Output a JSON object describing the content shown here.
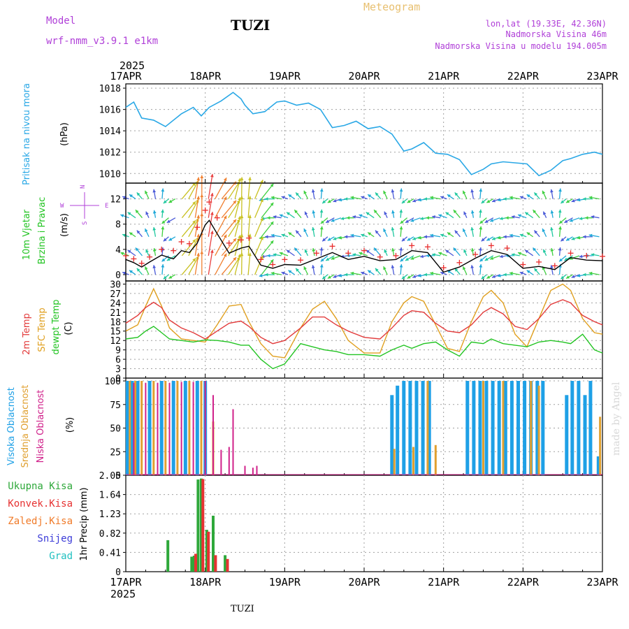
{
  "header": {
    "left_line1": "Model",
    "left_line2": "wrf-nmm_v3.9.1 e1km",
    "title": "TUZI",
    "center_title": "Meteogram",
    "right_line1": "lon,lat (19.33E, 42.36N)",
    "right_line2": "Nadmorska Visina 46m",
    "right_line3": "Nadmorska Visina u modelu 194.005m",
    "year_top": "2025",
    "year_bottom": "2025",
    "footer": "TUZI",
    "credit": "made by Angel",
    "compass": {
      "n": "N",
      "w": "W",
      "e": "E",
      "s": "S"
    }
  },
  "colors": {
    "pressure": "#2aa8e6",
    "wind_speed": "#000000",
    "gust_marker": "#e82c2c",
    "temp_2m": "#e23b3b",
    "temp_sfc": "#e0a020",
    "dewpoint": "#22c422",
    "cloud_high": "#1ea0e6",
    "cloud_mid": "#e0a030",
    "cloud_low": "#d0208a",
    "precip_total": "#2ea83a",
    "precip_conv": "#e63232",
    "precip_frozen": "#f07a28",
    "precip_snow": "#3c3cd8",
    "precip_graupel": "#20c0c0",
    "header_purple": "#b040d8",
    "header_orange": "#e8c070",
    "axis": "#000000",
    "grid": "#a0a0a0"
  },
  "chart_data": [
    {
      "type": "line",
      "panel": "pressure",
      "ylabel_lines": [
        "Pritisak na nivou mora",
        "(hPa)"
      ],
      "yticks": [
        1010,
        1012,
        1014,
        1016,
        1018
      ],
      "ylim": [
        1009.1,
        1018.4
      ],
      "x_ticks": [
        "17APR",
        "18APR",
        "19APR",
        "20APR",
        "21APR",
        "22APR",
        "23APR"
      ],
      "x": [
        0,
        0.1,
        0.2,
        0.35,
        0.5,
        0.7,
        0.85,
        0.95,
        1.05,
        1.2,
        1.35,
        1.45,
        1.5,
        1.6,
        1.75,
        1.9,
        2.0,
        2.15,
        2.3,
        2.45,
        2.6,
        2.75,
        2.9,
        3.05,
        3.2,
        3.35,
        3.5,
        3.6,
        3.75,
        3.9,
        4.05,
        4.2,
        4.35,
        4.5,
        4.6,
        4.75,
        4.9,
        5.05,
        5.2,
        5.35,
        5.5,
        5.6,
        5.75,
        5.9,
        6.0
      ],
      "series": [
        {
          "name": "Pritisak na nivou mora",
          "values": [
            1016.2,
            1016.7,
            1015.2,
            1015.0,
            1014.4,
            1015.6,
            1016.2,
            1015.4,
            1016.2,
            1016.8,
            1017.6,
            1017.0,
            1016.4,
            1015.6,
            1015.8,
            1016.7,
            1016.8,
            1016.4,
            1016.6,
            1016.0,
            1014.3,
            1014.5,
            1014.9,
            1014.2,
            1014.4,
            1013.7,
            1012.1,
            1012.3,
            1012.9,
            1011.9,
            1011.8,
            1011.3,
            1009.9,
            1010.4,
            1010.9,
            1011.1,
            1011.0,
            1010.9,
            1009.8,
            1010.3,
            1011.2,
            1011.4,
            1011.8,
            1012.0,
            1011.8
          ]
        }
      ]
    },
    {
      "type": "line",
      "panel": "wind",
      "ylabel_lines": [
        "10m Vjetar",
        "Brzina i Pravac",
        "(m/s)"
      ],
      "yticks": [
        0,
        4,
        8,
        12
      ],
      "ylim": [
        -1,
        14.5
      ],
      "x": [
        0,
        0.1,
        0.2,
        0.3,
        0.45,
        0.6,
        0.7,
        0.8,
        0.9,
        1.0,
        1.05,
        1.15,
        1.3,
        1.45,
        1.55,
        1.7,
        1.85,
        2.0,
        2.2,
        2.4,
        2.6,
        2.8,
        3.0,
        3.2,
        3.4,
        3.6,
        3.8,
        4.0,
        4.2,
        4.4,
        4.6,
        4.8,
        5.0,
        5.2,
        5.4,
        5.6,
        5.8,
        6.0
      ],
      "series": [
        {
          "name": "speed",
          "values": [
            2.4,
            1.9,
            1.2,
            2.0,
            3.1,
            2.5,
            3.8,
            3.5,
            5.0,
            7.9,
            8.6,
            6.5,
            3.4,
            4.2,
            4.5,
            1.5,
            1.0,
            1.6,
            1.5,
            2.5,
            3.5,
            2.4,
            2.9,
            2.2,
            2.4,
            3.8,
            3.5,
            0.4,
            1.2,
            2.6,
            3.8,
            3.2,
            1.0,
            1.3,
            0.8,
            2.7,
            2.3,
            2.2
          ]
        },
        {
          "name": "gust",
          "values": [
            3.0,
            2.5,
            1.8,
            2.8,
            4.0,
            3.8,
            5.2,
            4.9,
            7.5,
            10.2,
            11.5,
            9.0,
            5.0,
            5.5,
            5.8,
            2.4,
            1.6,
            2.4,
            2.3,
            3.4,
            4.5,
            3.4,
            3.8,
            2.8,
            3.0,
            4.6,
            4.4,
            1.1,
            1.9,
            3.2,
            4.6,
            4.2,
            1.6,
            2.0,
            1.4,
            3.4,
            3.0,
            2.9
          ]
        }
      ],
      "arrow_rows": [
        12,
        9,
        6,
        3,
        0
      ]
    },
    {
      "type": "line",
      "panel": "temperature",
      "ylabel_lines": [
        "2m Temp",
        "SFC Temp",
        "dewpt Temp",
        "(C)"
      ],
      "yticks": [
        0,
        3,
        6,
        9,
        12,
        15,
        18,
        21,
        24,
        27,
        30
      ],
      "ylim": [
        0,
        31
      ],
      "x": [
        0,
        0.15,
        0.25,
        0.35,
        0.45,
        0.55,
        0.7,
        0.85,
        1.0,
        1.15,
        1.3,
        1.45,
        1.55,
        1.7,
        1.85,
        2.0,
        2.2,
        2.35,
        2.5,
        2.65,
        2.8,
        3.0,
        3.2,
        3.35,
        3.5,
        3.6,
        3.75,
        3.9,
        4.05,
        4.2,
        4.35,
        4.5,
        4.6,
        4.75,
        4.9,
        5.05,
        5.2,
        5.35,
        5.5,
        5.6,
        5.75,
        5.9,
        6.0
      ],
      "series": [
        {
          "name": "2m Temp",
          "values": [
            17.5,
            20,
            22.5,
            24.2,
            22.5,
            18.5,
            16,
            14.5,
            12.5,
            15,
            17.5,
            18.2,
            16.5,
            13,
            11,
            12,
            16,
            19.5,
            19.5,
            17,
            15,
            13,
            12.5,
            16,
            20,
            21.5,
            21,
            17.5,
            15,
            14.5,
            17,
            21,
            22.5,
            20.5,
            16.5,
            15.5,
            19,
            23.5,
            25,
            24,
            20,
            18,
            17
          ]
        },
        {
          "name": "SFC Temp",
          "values": [
            15,
            17,
            23,
            28.5,
            23,
            16,
            12.5,
            12,
            11.5,
            17,
            23,
            23.5,
            18,
            11,
            7,
            6.5,
            16,
            22,
            24.5,
            19,
            12,
            8,
            8,
            18,
            24,
            26,
            24.5,
            17,
            9.5,
            8.5,
            18,
            26,
            28,
            24,
            14,
            10,
            19,
            28,
            30,
            28,
            19,
            14.5,
            14
          ]
        },
        {
          "name": "dewpt Temp",
          "values": [
            12.5,
            13,
            15,
            16.5,
            14.5,
            12.5,
            12,
            11.5,
            12.2,
            12,
            11.5,
            10.5,
            10.5,
            6,
            3,
            4.5,
            11,
            10,
            9,
            8.5,
            7.5,
            7.5,
            7,
            9,
            10.5,
            9.5,
            11,
            11.5,
            9,
            7,
            11.5,
            11,
            12.5,
            11,
            10.5,
            10,
            11.5,
            12,
            11.5,
            11,
            14,
            9,
            8
          ]
        }
      ]
    },
    {
      "type": "bar",
      "panel": "cloud",
      "ylabel_lines": [
        "Visoka Oblacnost",
        "Srednja Oblacnost",
        "Niska Oblacnost",
        "(%)"
      ],
      "yticks": [
        0,
        25,
        50,
        75,
        100
      ],
      "ylim": [
        0,
        103
      ],
      "series": [
        {
          "name": "Visoka Oblacnost",
          "x": [
            0.02,
            0.08,
            0.15,
            0.3,
            0.45,
            0.6,
            0.75,
            0.9,
            1.0,
            3.35,
            3.42,
            3.5,
            3.58,
            3.66,
            3.74,
            3.82,
            4.3,
            4.38,
            4.46,
            4.54,
            4.62,
            4.7,
            4.78,
            4.86,
            4.94,
            5.02,
            5.1,
            5.18,
            5.25,
            5.55,
            5.62,
            5.7,
            5.78,
            5.85,
            5.95
          ],
          "values": [
            100,
            100,
            100,
            100,
            100,
            100,
            100,
            100,
            100,
            85,
            95,
            100,
            100,
            100,
            100,
            100,
            100,
            100,
            100,
            100,
            100,
            100,
            100,
            100,
            100,
            100,
            100,
            100,
            100,
            85,
            100,
            100,
            85,
            100,
            20
          ]
        },
        {
          "name": "Srednja Oblacnost",
          "x": [
            0.05,
            0.12,
            0.2,
            0.35,
            0.5,
            0.65,
            0.8,
            0.95,
            1.1,
            3.38,
            3.62,
            3.8,
            3.9,
            4.5,
            4.75,
            5.1,
            5.2,
            5.97
          ],
          "values": [
            100,
            100,
            100,
            100,
            100,
            100,
            100,
            100,
            57,
            28,
            30,
            100,
            32,
            100,
            100,
            100,
            95,
            62
          ]
        },
        {
          "name": "Niska Oblacnost",
          "x": [
            0.1,
            0.25,
            0.4,
            0.55,
            0.7,
            0.85,
            1.0,
            1.1,
            1.2,
            1.3,
            1.35,
            1.5,
            1.6,
            1.65
          ],
          "values": [
            98,
            98,
            98,
            98,
            99,
            99,
            100,
            85,
            27,
            30,
            70,
            10,
            8,
            10
          ]
        }
      ]
    },
    {
      "type": "bar",
      "panel": "precipitation",
      "ylabel_lines": [
        "1hr Precip (mm)"
      ],
      "legend": [
        "Ukupna Kisa",
        "Konvek.Kisa",
        "Zaledj.Kisa",
        "Snijeg",
        "Grad"
      ],
      "yticks": [
        0,
        0.41,
        0.82,
        1.23,
        1.64,
        2.05
      ],
      "ylim": [
        0,
        2.05
      ],
      "series": [
        {
          "name": "Ukupna Kisa",
          "x": [
            0.53,
            0.83,
            0.86,
            0.91,
            0.95,
            1.02,
            1.1,
            1.25
          ],
          "values": [
            0.67,
            0.32,
            0.34,
            1.96,
            1.98,
            0.89,
            1.19,
            0.35
          ]
        },
        {
          "name": "Konvek.Kisa",
          "x": [
            0.88,
            0.97,
            1.04,
            1.13,
            1.28
          ],
          "values": [
            0.38,
            1.97,
            0.85,
            0.35,
            0.27
          ]
        }
      ]
    }
  ]
}
